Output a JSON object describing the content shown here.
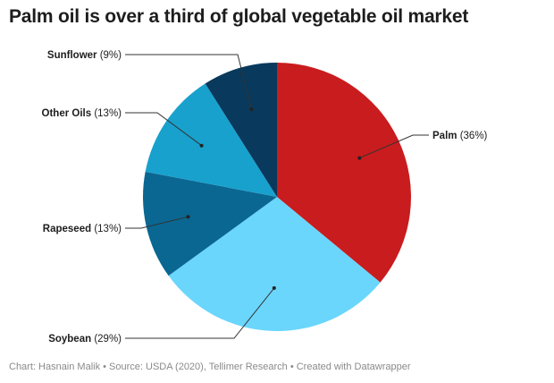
{
  "title": "Palm oil is over a third of global vegetable oil market",
  "footer": "Chart: Hasnain Malik • Source: USDA (2020), Tellimer Research • Created with Datawrapper",
  "chart_data": {
    "type": "pie",
    "title": "Palm oil is over a third of global vegetable oil market",
    "unit": "%",
    "slices": [
      {
        "name": "Palm",
        "value": 36,
        "label": "(36%)",
        "color": "#c91c1e"
      },
      {
        "name": "Soybean",
        "value": 29,
        "label": "(29%)",
        "color": "#6ad6fc"
      },
      {
        "name": "Rapeseed",
        "value": 13,
        "label": "(13%)",
        "color": "#0a6791"
      },
      {
        "name": "Other Oils",
        "value": 13,
        "label": "(13%)",
        "color": "#18a1cd"
      },
      {
        "name": "Sunflower",
        "value": 9,
        "label": "(9%)",
        "color": "#09395c"
      }
    ]
  }
}
